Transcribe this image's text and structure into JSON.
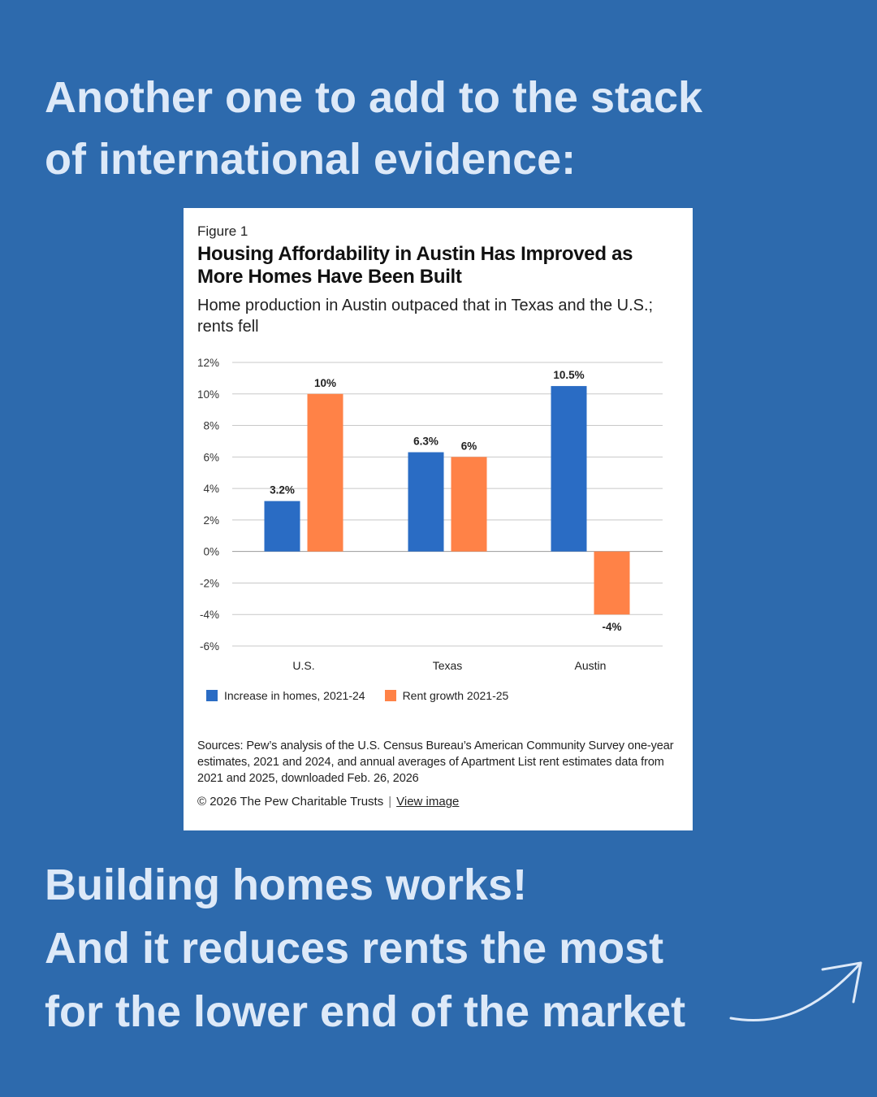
{
  "headline": {
    "line1": "Another one to add to the stack",
    "line2": "of international evidence:"
  },
  "figure": {
    "label": "Figure 1",
    "title": "Housing Affordability in Austin Has Improved as More Homes Have Been Built",
    "subtitle": "Home production in Austin outpaced that in Texas and the U.S.; rents fell",
    "sources": "Sources: Pew’s analysis of the U.S. Census Bureau’s American Community Survey one-year estimates, 2021 and 2024, and annual averages of Apartment List rent estimates data from 2021 and 2025, downloaded Feb. 26, 2026",
    "copyright": "© 2026 The Pew Charitable Trusts",
    "separator": "|",
    "view_image_link": "View image"
  },
  "chart_data": {
    "type": "bar",
    "categories": [
      "U.S.",
      "Texas",
      "Austin"
    ],
    "series": [
      {
        "name": "Increase in homes, 2021-24",
        "values": [
          3.2,
          6.3,
          10.5
        ],
        "labels": [
          "3.2%",
          "6.3%",
          "10.5%"
        ],
        "color": "#2a6cc4"
      },
      {
        "name": "Rent growth 2021-25",
        "values": [
          10,
          6,
          -4
        ],
        "labels": [
          "10%",
          "6%",
          "-4%"
        ],
        "color": "#ff8247"
      }
    ],
    "yticks": [
      12,
      10,
      8,
      6,
      4,
      2,
      0,
      -2,
      -4,
      -6
    ],
    "ytick_labels": [
      "12%",
      "10%",
      "8%",
      "6%",
      "4%",
      "2%",
      "0%",
      "-2%",
      "-4%",
      "-6%"
    ],
    "ylim": [
      -6,
      12
    ],
    "grid": true,
    "legend_position": "bottom-left"
  },
  "footer": {
    "line1": "Building homes works!",
    "line2": "And it reduces rents the most",
    "line3": "for the lower end of the market"
  },
  "colors": {
    "background": "#2d6aad",
    "text_light": "#dde9f8"
  },
  "icons": {
    "arrow": "curved-arrow-icon"
  }
}
